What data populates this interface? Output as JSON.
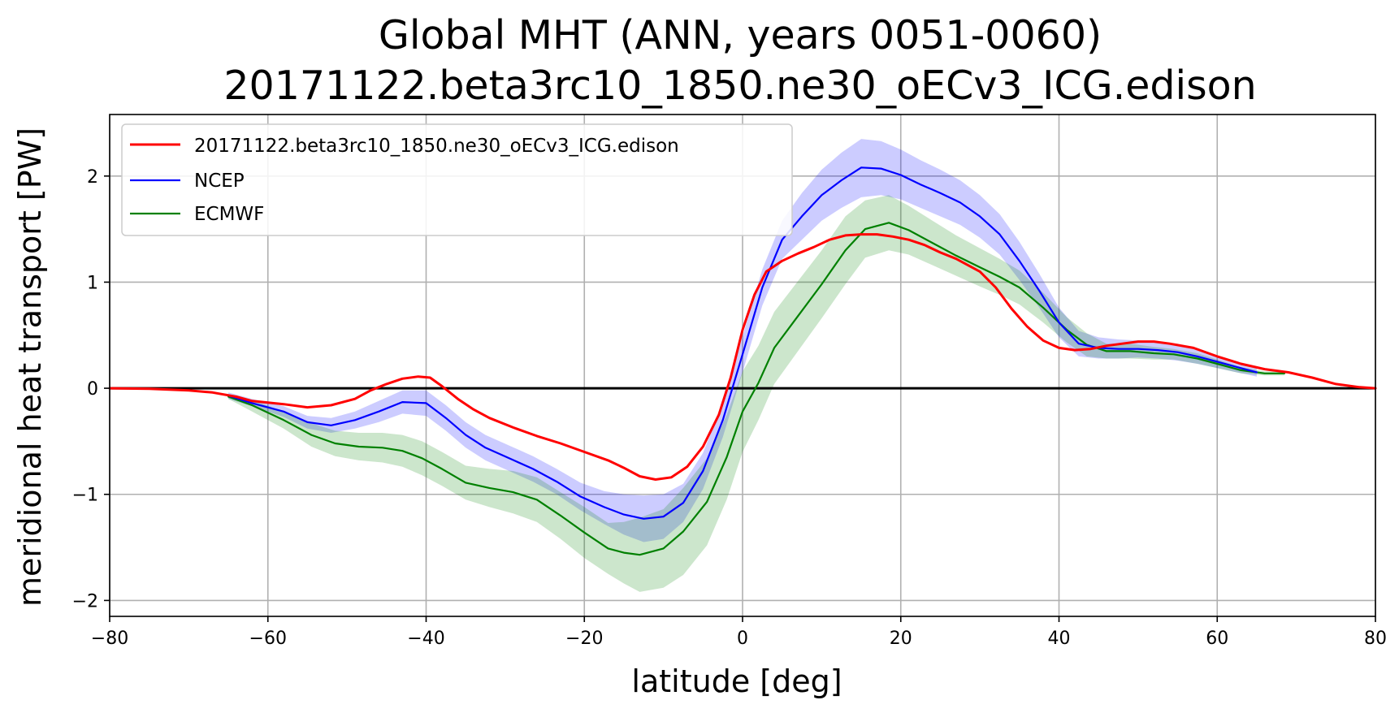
{
  "chart_data": {
    "type": "line",
    "title_line1": "Global MHT (ANN, years 0051-0060)",
    "title_line2": "20171122.beta3rc10_1850.ne30_oECv3_ICG.edison",
    "xlabel": "latitude [deg]",
    "ylabel": "meridional heat transport [PW]",
    "xlim": [
      -80,
      80
    ],
    "ylim": [
      -2.15,
      2.58
    ],
    "xticks": [
      -80,
      -60,
      -40,
      -20,
      0,
      20,
      40,
      60,
      80
    ],
    "yticks": [
      -2,
      -1,
      0,
      1,
      2
    ],
    "xtick_labels": [
      "−80",
      "−60",
      "−40",
      "−20",
      "0",
      "20",
      "40",
      "60",
      "80"
    ],
    "ytick_labels": [
      "−2",
      "−1",
      "0",
      "1",
      "2"
    ],
    "grid": true,
    "zero_line": true,
    "legend_position": "upper-left",
    "series": [
      {
        "name": "20171122.beta3rc10_1850.ne30_oECv3_ICG.edison",
        "color": "#ff0000",
        "x": [
          -80,
          -75,
          -70,
          -67,
          -64,
          -62,
          -58,
          -55,
          -52,
          -49,
          -47,
          -45,
          -43,
          -41,
          -39.5,
          -38,
          -36,
          -34,
          -32,
          -29,
          -26,
          -23,
          -20,
          -17,
          -15,
          -13,
          -11,
          -9,
          -7,
          -5,
          -3,
          -1.5,
          0,
          1.5,
          3,
          5,
          7,
          9,
          11,
          13,
          15,
          17,
          19,
          21,
          23,
          25,
          27,
          30,
          32,
          34,
          36,
          38,
          40,
          42,
          44,
          46,
          48,
          50,
          52,
          54,
          57,
          60,
          63,
          66,
          69,
          72,
          75,
          78,
          80
        ],
        "values": [
          0.0,
          -0.005,
          -0.02,
          -0.04,
          -0.08,
          -0.12,
          -0.15,
          -0.18,
          -0.16,
          -0.1,
          -0.02,
          0.04,
          0.09,
          0.11,
          0.1,
          0.02,
          -0.1,
          -0.2,
          -0.28,
          -0.37,
          -0.45,
          -0.52,
          -0.6,
          -0.68,
          -0.75,
          -0.83,
          -0.86,
          -0.84,
          -0.74,
          -0.55,
          -0.25,
          0.1,
          0.55,
          0.88,
          1.1,
          1.2,
          1.27,
          1.33,
          1.4,
          1.44,
          1.45,
          1.45,
          1.43,
          1.4,
          1.35,
          1.28,
          1.22,
          1.1,
          0.95,
          0.75,
          0.58,
          0.45,
          0.38,
          0.36,
          0.37,
          0.4,
          0.42,
          0.44,
          0.44,
          0.42,
          0.38,
          0.3,
          0.23,
          0.18,
          0.15,
          0.1,
          0.04,
          0.01,
          0.0
        ]
      },
      {
        "name": "NCEP",
        "color": "#0000ff",
        "band_color": "#0000ff",
        "x": [
          -65,
          -62,
          -58,
          -55,
          -52,
          -49,
          -46,
          -43,
          -40,
          -37.5,
          -35,
          -32.5,
          -29.5,
          -26.5,
          -23.5,
          -20.5,
          -17.5,
          -15,
          -12.5,
          -10,
          -7.5,
          -5,
          -2.5,
          0,
          2.5,
          5,
          7.5,
          10,
          12.5,
          15,
          17.5,
          20,
          22.5,
          25,
          27.5,
          30,
          32.5,
          35,
          37.5,
          40,
          42.5,
          45,
          47.5,
          50,
          52.5,
          55,
          57.5,
          60,
          62.5,
          65
        ],
        "values": [
          -0.07,
          -0.14,
          -0.22,
          -0.32,
          -0.35,
          -0.3,
          -0.22,
          -0.13,
          -0.14,
          -0.28,
          -0.44,
          -0.56,
          -0.66,
          -0.76,
          -0.88,
          -1.02,
          -1.12,
          -1.19,
          -1.23,
          -1.21,
          -1.08,
          -0.78,
          -0.3,
          0.32,
          0.95,
          1.4,
          1.62,
          1.82,
          1.96,
          2.08,
          2.07,
          2.01,
          1.92,
          1.84,
          1.75,
          1.62,
          1.45,
          1.2,
          0.92,
          0.62,
          0.42,
          0.38,
          0.37,
          0.37,
          0.36,
          0.34,
          0.3,
          0.25,
          0.2,
          0.15
        ],
        "lower": [
          -0.1,
          -0.17,
          -0.27,
          -0.38,
          -0.42,
          -0.38,
          -0.32,
          -0.24,
          -0.26,
          -0.4,
          -0.56,
          -0.68,
          -0.78,
          -0.88,
          -1.0,
          -1.15,
          -1.28,
          -1.38,
          -1.45,
          -1.42,
          -1.26,
          -0.95,
          -0.46,
          0.15,
          0.78,
          1.22,
          1.4,
          1.58,
          1.7,
          1.8,
          1.82,
          1.78,
          1.7,
          1.62,
          1.54,
          1.42,
          1.26,
          1.02,
          0.76,
          0.48,
          0.3,
          0.28,
          0.28,
          0.29,
          0.28,
          0.26,
          0.23,
          0.19,
          0.15,
          0.11
        ],
        "upper": [
          -0.04,
          -0.1,
          -0.17,
          -0.26,
          -0.28,
          -0.22,
          -0.12,
          -0.02,
          -0.02,
          -0.16,
          -0.32,
          -0.44,
          -0.54,
          -0.64,
          -0.76,
          -0.89,
          -0.97,
          -1.0,
          -1.01,
          -1.0,
          -0.9,
          -0.61,
          -0.14,
          0.49,
          1.12,
          1.58,
          1.84,
          2.06,
          2.22,
          2.35,
          2.33,
          2.25,
          2.15,
          2.06,
          1.96,
          1.82,
          1.64,
          1.38,
          1.08,
          0.76,
          0.54,
          0.48,
          0.46,
          0.45,
          0.44,
          0.42,
          0.37,
          0.31,
          0.25,
          0.19
        ]
      },
      {
        "name": "ECMWF",
        "color": "#008000",
        "band_color": "#008000",
        "x": [
          -65,
          -62,
          -58,
          -54.5,
          -51.5,
          -48.5,
          -45.5,
          -43,
          -40.5,
          -38,
          -35,
          -32,
          -29,
          -26,
          -23,
          -20,
          -17,
          -15,
          -13,
          -10,
          -7.5,
          -4.5,
          -2,
          0,
          2,
          4,
          7,
          10,
          13,
          15.5,
          18.5,
          21,
          24,
          27,
          30,
          32.5,
          35,
          38,
          41,
          43.5,
          46,
          49,
          52,
          54.5,
          57.5,
          60,
          63,
          66,
          68.5
        ],
        "values": [
          -0.08,
          -0.16,
          -0.3,
          -0.44,
          -0.52,
          -0.55,
          -0.56,
          -0.59,
          -0.66,
          -0.76,
          -0.89,
          -0.94,
          -0.98,
          -1.05,
          -1.2,
          -1.36,
          -1.51,
          -1.55,
          -1.57,
          -1.51,
          -1.35,
          -1.07,
          -0.65,
          -0.22,
          0.05,
          0.38,
          0.68,
          0.98,
          1.3,
          1.5,
          1.56,
          1.49,
          1.37,
          1.25,
          1.14,
          1.05,
          0.95,
          0.76,
          0.55,
          0.41,
          0.35,
          0.35,
          0.33,
          0.32,
          0.28,
          0.23,
          0.17,
          0.14,
          0.14
        ],
        "lower": [
          -0.1,
          -0.22,
          -0.38,
          -0.55,
          -0.64,
          -0.68,
          -0.7,
          -0.74,
          -0.82,
          -0.92,
          -1.05,
          -1.12,
          -1.18,
          -1.26,
          -1.42,
          -1.6,
          -1.75,
          -1.84,
          -1.92,
          -1.88,
          -1.76,
          -1.48,
          -1.05,
          -0.6,
          -0.3,
          0.04,
          0.35,
          0.66,
          0.98,
          1.23,
          1.3,
          1.26,
          1.16,
          1.06,
          0.96,
          0.88,
          0.79,
          0.62,
          0.43,
          0.3,
          0.28,
          0.28,
          0.27,
          0.27,
          0.23,
          0.19,
          0.14,
          0.12,
          0.12
        ],
        "upper": [
          -0.06,
          -0.11,
          -0.22,
          -0.33,
          -0.4,
          -0.42,
          -0.42,
          -0.44,
          -0.5,
          -0.6,
          -0.73,
          -0.76,
          -0.78,
          -0.84,
          -0.98,
          -1.12,
          -1.27,
          -1.26,
          -1.22,
          -1.14,
          -0.94,
          -0.66,
          -0.25,
          0.16,
          0.4,
          0.72,
          1.01,
          1.3,
          1.62,
          1.77,
          1.82,
          1.72,
          1.58,
          1.44,
          1.32,
          1.22,
          1.11,
          0.9,
          0.67,
          0.52,
          0.42,
          0.42,
          0.39,
          0.37,
          0.33,
          0.27,
          0.2,
          0.16,
          0.16
        ]
      }
    ]
  }
}
